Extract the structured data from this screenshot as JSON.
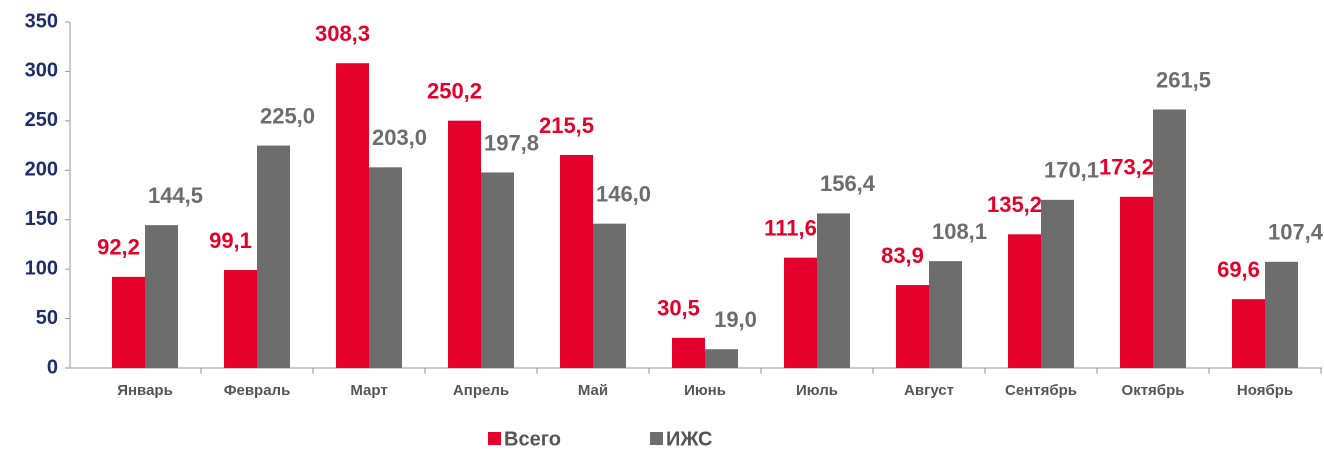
{
  "chart_data": {
    "type": "bar",
    "categories": [
      "Январь",
      "Февраль",
      "Март",
      "Апрель",
      "Май",
      "Июнь",
      "Июль",
      "Август",
      "Сентябрь",
      "Октябрь",
      "Ноябрь"
    ],
    "series": [
      {
        "name": "Всего",
        "color": "#e4002b",
        "values": [
          92.2,
          99.1,
          308.3,
          250.2,
          215.5,
          30.5,
          111.6,
          83.9,
          135.2,
          173.2,
          69.6
        ],
        "value_labels": [
          "92,2",
          "99,1",
          "308,3",
          "250,2",
          "215,5",
          "30,5",
          "111,6",
          "83,9",
          "135,2",
          "173,2",
          "69,6"
        ]
      },
      {
        "name": "ИЖС",
        "color": "#6d6d6d",
        "values": [
          144.5,
          225.0,
          203.0,
          197.8,
          146.0,
          19.0,
          156.4,
          108.1,
          170.1,
          261.5,
          107.4
        ],
        "value_labels": [
          "144,5",
          "225,0",
          "203,0",
          "197,8",
          "146,0",
          "19,0",
          "156,4",
          "108,1",
          "170,1",
          "261,5",
          "107,4"
        ]
      }
    ],
    "ylim": [
      0,
      350
    ],
    "yticks": [
      0,
      50,
      100,
      150,
      200,
      250,
      300,
      350
    ],
    "legend": "bottom"
  }
}
